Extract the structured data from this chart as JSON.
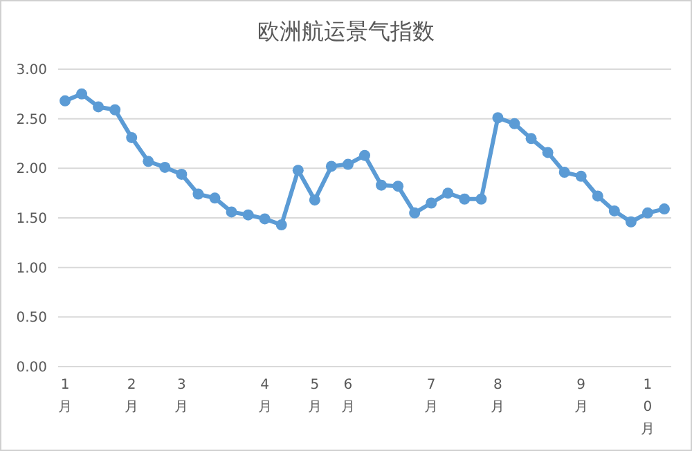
{
  "chart_data": {
    "type": "line",
    "title": "欧洲航运景气指数",
    "categories": [
      "1月",
      null,
      null,
      null,
      "2月",
      null,
      null,
      "3月",
      null,
      null,
      null,
      null,
      "4月",
      null,
      null,
      "5月",
      null,
      "6月",
      null,
      null,
      null,
      null,
      "7月",
      null,
      null,
      null,
      "8月",
      null,
      null,
      null,
      null,
      "9月",
      null,
      null,
      null,
      "10月",
      null
    ],
    "series": [
      {
        "color": "#5b9bd5",
        "values": [
          2.68,
          2.75,
          2.62,
          2.59,
          2.31,
          2.07,
          2.01,
          1.94,
          1.74,
          1.7,
          1.56,
          1.53,
          1.49,
          1.43,
          1.98,
          1.68,
          2.02,
          2.04,
          2.13,
          1.83,
          1.82,
          1.55,
          1.65,
          1.75,
          1.69,
          1.69,
          2.51,
          2.45,
          2.3,
          2.16,
          1.96,
          1.92,
          1.72,
          1.57,
          1.46,
          1.55,
          1.59
        ]
      }
    ],
    "ylim": [
      0,
      3
    ],
    "yticks": [
      {
        "value": 0,
        "label": "0.00"
      },
      {
        "value": 0.5,
        "label": "0.50"
      },
      {
        "value": 1,
        "label": "1.00"
      },
      {
        "value": 1.5,
        "label": "1.50"
      },
      {
        "value": 2,
        "label": "2.00"
      },
      {
        "value": 2.5,
        "label": "2.50"
      },
      {
        "value": 3,
        "label": "3.00"
      }
    ],
    "grid": "y",
    "marker": "circle",
    "line_style": "solid"
  }
}
